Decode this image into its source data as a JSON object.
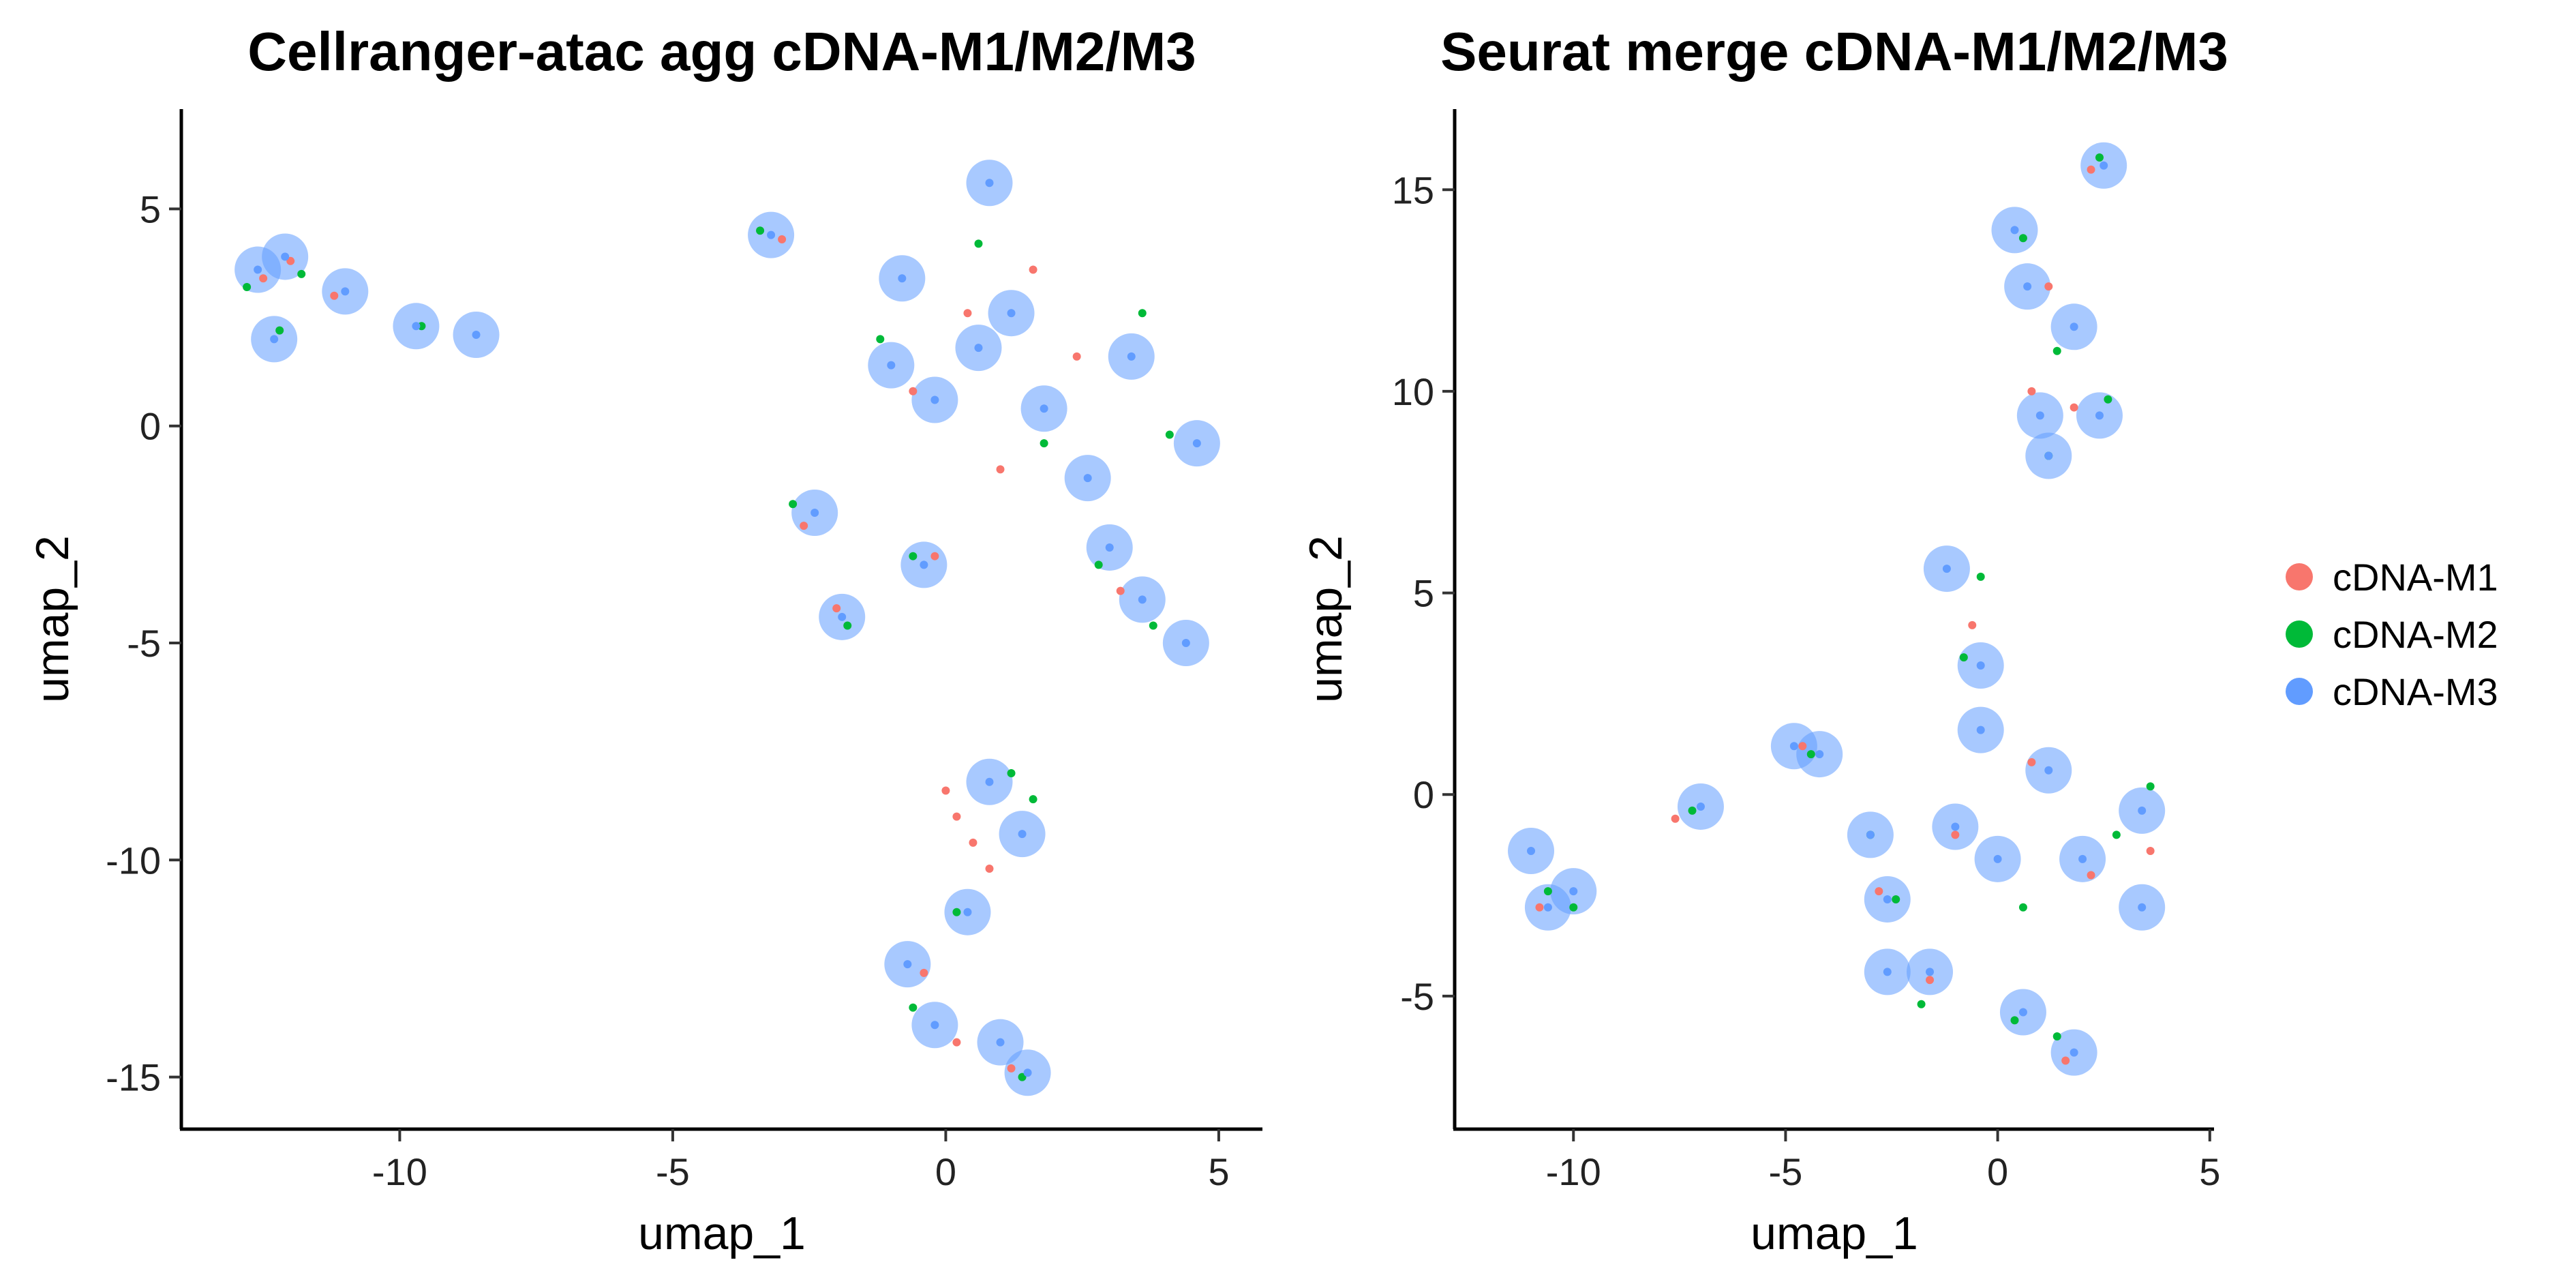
{
  "colors": {
    "cDNA-M1": "#F8766D",
    "cDNA-M2": "#00BA38",
    "cDNA-M3": "#619CFF"
  },
  "legend": {
    "placement": "right",
    "entries": [
      "cDNA-M1",
      "cDNA-M2",
      "cDNA-M3"
    ]
  },
  "chart_data": [
    {
      "type": "scatter",
      "title": "Cellranger-atac agg cDNA-M1/M2/M3",
      "xlabel": "umap_1",
      "ylabel": "umap_2",
      "xlim": [
        -14.0,
        5.8
      ],
      "ylim": [
        -16.2,
        7.3
      ],
      "xticks": [
        -10,
        -5,
        0,
        5
      ],
      "yticks": [
        5,
        0,
        -5,
        -10,
        -15
      ],
      "xtick_labels": [
        "-10",
        "-5",
        "0",
        "5"
      ],
      "ytick_labels": [
        "5",
        "0",
        "-5",
        "-10",
        "-15"
      ],
      "grid": false,
      "series": [
        {
          "name": "cDNA-M1",
          "points": [
            [
              -12.5,
              3.4
            ],
            [
              -12.0,
              3.8
            ],
            [
              -11.2,
              3.0
            ],
            [
              -3.0,
              4.3
            ],
            [
              -2.6,
              -2.3
            ],
            [
              -2.0,
              -4.2
            ],
            [
              -0.6,
              0.8
            ],
            [
              0.4,
              2.6
            ],
            [
              1.0,
              -1.0
            ],
            [
              1.6,
              3.6
            ],
            [
              -0.2,
              -3.0
            ],
            [
              2.4,
              1.6
            ],
            [
              3.2,
              -3.8
            ],
            [
              0.0,
              -8.4
            ],
            [
              0.5,
              -9.6
            ],
            [
              0.8,
              -10.2
            ],
            [
              0.2,
              -9.0
            ],
            [
              -0.4,
              -12.6
            ],
            [
              0.2,
              -14.2
            ],
            [
              1.2,
              -14.8
            ]
          ]
        },
        {
          "name": "cDNA-M2",
          "points": [
            [
              -12.8,
              3.2
            ],
            [
              -11.8,
              3.5
            ],
            [
              -12.2,
              2.2
            ],
            [
              -9.6,
              2.3
            ],
            [
              -3.4,
              4.5
            ],
            [
              -2.8,
              -1.8
            ],
            [
              -1.8,
              -4.6
            ],
            [
              -1.2,
              2.0
            ],
            [
              0.6,
              4.2
            ],
            [
              1.8,
              -0.4
            ],
            [
              3.6,
              2.6
            ],
            [
              4.1,
              -0.2
            ],
            [
              2.8,
              -3.2
            ],
            [
              3.8,
              -4.6
            ],
            [
              -0.6,
              -3.0
            ],
            [
              1.2,
              -8.0
            ],
            [
              1.6,
              -8.6
            ],
            [
              0.2,
              -11.2
            ],
            [
              -0.6,
              -13.4
            ],
            [
              1.4,
              -15.0
            ]
          ]
        },
        {
          "name": "cDNA-M3",
          "points": [
            [
              -12.6,
              3.6
            ],
            [
              -12.1,
              3.9
            ],
            [
              -12.3,
              2.0
            ],
            [
              -11.0,
              3.1
            ],
            [
              -9.7,
              2.3
            ],
            [
              -8.6,
              2.1
            ],
            [
              -3.2,
              4.4
            ],
            [
              -2.4,
              -2.0
            ],
            [
              -1.9,
              -4.4
            ],
            [
              -1.0,
              1.4
            ],
            [
              -0.2,
              0.6
            ],
            [
              0.6,
              1.8
            ],
            [
              1.2,
              2.6
            ],
            [
              0.8,
              5.6
            ],
            [
              -0.8,
              3.4
            ],
            [
              1.8,
              0.4
            ],
            [
              2.6,
              -1.2
            ],
            [
              3.4,
              1.6
            ],
            [
              4.6,
              -0.4
            ],
            [
              3.0,
              -2.8
            ],
            [
              3.6,
              -4.0
            ],
            [
              4.4,
              -5.0
            ],
            [
              -0.4,
              -3.2
            ],
            [
              0.8,
              -8.2
            ],
            [
              1.4,
              -9.4
            ],
            [
              0.4,
              -11.2
            ],
            [
              -0.7,
              -12.4
            ],
            [
              -0.2,
              -13.8
            ],
            [
              1.0,
              -14.2
            ],
            [
              1.5,
              -14.9
            ]
          ]
        }
      ]
    },
    {
      "type": "scatter",
      "title": "Seurat merge cDNA-M1/M2/M3",
      "xlabel": "umap_1",
      "ylabel": "umap_2",
      "xlim": [
        -12.8,
        5.1
      ],
      "ylim": [
        -8.3,
        17.0
      ],
      "xticks": [
        -10,
        -5,
        0,
        5
      ],
      "yticks": [
        15,
        10,
        5,
        0,
        -5
      ],
      "xtick_labels": [
        "-10",
        "-5",
        "0",
        "5"
      ],
      "ytick_labels": [
        "15",
        "10",
        "5",
        "0",
        "-5"
      ],
      "grid": false,
      "series": [
        {
          "name": "cDNA-M1",
          "points": [
            [
              2.2,
              15.5
            ],
            [
              1.2,
              12.6
            ],
            [
              0.8,
              10.0
            ],
            [
              1.8,
              9.6
            ],
            [
              -0.6,
              4.2
            ],
            [
              -4.6,
              1.2
            ],
            [
              -7.6,
              -0.6
            ],
            [
              -10.8,
              -2.8
            ],
            [
              -2.8,
              -2.4
            ],
            [
              -1.0,
              -1.0
            ],
            [
              0.8,
              0.8
            ],
            [
              2.2,
              -2.0
            ],
            [
              3.6,
              -1.4
            ],
            [
              1.6,
              -6.6
            ],
            [
              -1.6,
              -4.6
            ]
          ]
        },
        {
          "name": "cDNA-M2",
          "points": [
            [
              2.4,
              15.8
            ],
            [
              0.6,
              13.8
            ],
            [
              1.4,
              11.0
            ],
            [
              2.6,
              9.8
            ],
            [
              1.2,
              8.4
            ],
            [
              -0.8,
              3.4
            ],
            [
              -0.4,
              5.4
            ],
            [
              -4.4,
              1.0
            ],
            [
              -7.2,
              -0.4
            ],
            [
              -10.6,
              -2.4
            ],
            [
              -10.0,
              -2.8
            ],
            [
              -2.4,
              -2.6
            ],
            [
              -3.0,
              -1.0
            ],
            [
              0.6,
              -2.8
            ],
            [
              2.8,
              -1.0
            ],
            [
              3.6,
              0.2
            ],
            [
              0.4,
              -5.6
            ],
            [
              1.4,
              -6.0
            ],
            [
              -1.8,
              -5.2
            ]
          ]
        },
        {
          "name": "cDNA-M3",
          "points": [
            [
              2.5,
              15.6
            ],
            [
              0.4,
              14.0
            ],
            [
              0.7,
              12.6
            ],
            [
              1.8,
              11.6
            ],
            [
              1.0,
              9.4
            ],
            [
              2.4,
              9.4
            ],
            [
              1.2,
              8.4
            ],
            [
              -1.2,
              5.6
            ],
            [
              -0.4,
              3.2
            ],
            [
              -0.4,
              1.6
            ],
            [
              -4.8,
              1.2
            ],
            [
              -4.2,
              1.0
            ],
            [
              -7.0,
              -0.3
            ],
            [
              -11.0,
              -1.4
            ],
            [
              -10.6,
              -2.8
            ],
            [
              -10.0,
              -2.4
            ],
            [
              -2.6,
              -2.6
            ],
            [
              -3.0,
              -1.0
            ],
            [
              -1.0,
              -0.8
            ],
            [
              0.0,
              -1.6
            ],
            [
              1.2,
              0.6
            ],
            [
              2.0,
              -1.6
            ],
            [
              3.4,
              -0.4
            ],
            [
              3.4,
              -2.8
            ],
            [
              -1.6,
              -4.4
            ],
            [
              0.6,
              -5.4
            ],
            [
              1.8,
              -6.4
            ],
            [
              -2.6,
              -4.4
            ]
          ]
        }
      ]
    }
  ]
}
